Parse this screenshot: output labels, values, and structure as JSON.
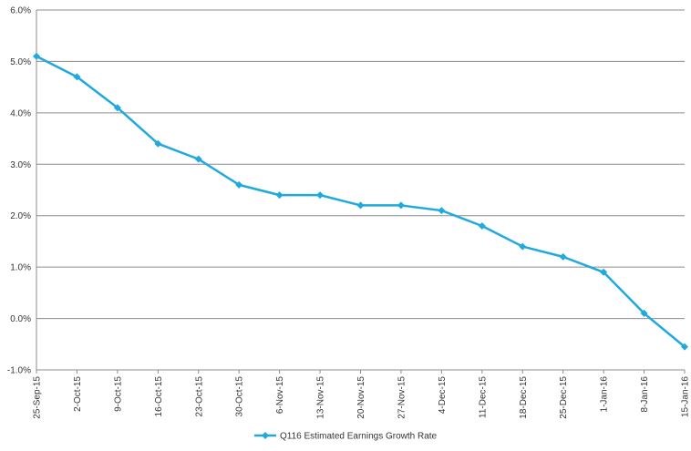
{
  "chart_data": {
    "type": "line",
    "title": "",
    "xlabel": "",
    "ylabel": "",
    "categories": [
      "25-Sep-15",
      "2-Oct-15",
      "9-Oct-15",
      "16-Oct-15",
      "23-Oct-15",
      "30-Oct-15",
      "6-Nov-15",
      "13-Nov-15",
      "20-Nov-15",
      "27-Nov-15",
      "4-Dec-15",
      "11-Dec-15",
      "18-Dec-15",
      "25-Dec-15",
      "1-Jan-16",
      "8-Jan-16",
      "15-Jan-16"
    ],
    "series": [
      {
        "name": "Q116 Estimated Earnings Growth Rate",
        "values": [
          5.1,
          4.7,
          4.1,
          3.4,
          3.1,
          2.6,
          2.4,
          2.4,
          2.2,
          2.2,
          2.1,
          1.8,
          1.4,
          1.2,
          0.9,
          0.1,
          -0.55
        ],
        "color": "#1fa9dd",
        "marker": "diamond"
      }
    ],
    "ylim": [
      -1.0,
      6.0
    ],
    "yticks": [
      -1.0,
      0.0,
      1.0,
      2.0,
      3.0,
      4.0,
      5.0,
      6.0
    ],
    "ytick_labels": [
      "-1.0%",
      "0.0%",
      "1.0%",
      "2.0%",
      "3.0%",
      "4.0%",
      "5.0%",
      "6.0%"
    ],
    "grid": true,
    "legend_position": "bottom-center",
    "grid_color": "#8c8c8c"
  }
}
